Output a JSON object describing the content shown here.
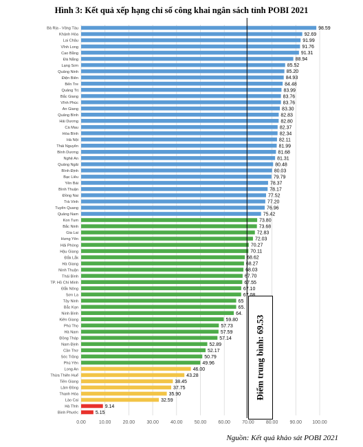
{
  "title": "Hình 3: Kết quả xếp hạng chỉ số công khai ngân sách tỉnh POBI 2021",
  "source": "Nguồn: Kết quả khảo sát POBI 2021",
  "median_label": "Điểm trung bình: 69.53",
  "colors": {
    "blue": "#5b9bd5",
    "green": "#4eac4a",
    "yellow": "#f2c447",
    "red": "#e8312c"
  },
  "chart_data": {
    "type": "bar",
    "orientation": "horizontal",
    "title": "Hình 3: Kết quả xếp hạng chỉ số công khai ngân sách tỉnh POBI 2021",
    "xlim": [
      0,
      100
    ],
    "xticks": [
      "0.00",
      "10.00",
      "20.00",
      "30.00",
      "40.00",
      "50.00",
      "60.00",
      "70.00",
      "80.00",
      "90.00",
      "100.00"
    ],
    "reference_line": {
      "value": 69.53,
      "label": "Điểm trung bình: 69.53"
    },
    "grid": true,
    "categories": [
      "Bà Rịa - Vũng Tàu",
      "Khánh Hòa",
      "Lai Châu",
      "Vĩnh Long",
      "Cao Bằng",
      "Đà Nẵng",
      "Lạng Sơn",
      "Quảng Ninh",
      "Điện Biên",
      "Bến Tre",
      "Quảng Trị",
      "Bắc Giang",
      "Vĩnh Phúc",
      "An Giang",
      "Quảng Bình",
      "Hải Dương",
      "Cà Mau",
      "Hòa Bình",
      "Hà Nội",
      "Thái Nguyên",
      "Bình Dương",
      "Nghệ An",
      "Quảng Ngãi",
      "Bình Định",
      "Bạc Liêu",
      "Yên Bái",
      "Bình Thuận",
      "Đồng Nai",
      "Trà Vinh",
      "Tuyên Quang",
      "Quảng Nam",
      "Kon Tum",
      "Bắc Ninh",
      "Gia Lai",
      "Hưng Yên",
      "Hải Phòng",
      "Hậu Giang",
      "Đắk Lắk",
      "Hà Giang",
      "Ninh Thuận",
      "Thái Bình",
      "TP. Hồ Chí Minh",
      "Đắk Nông",
      "Sơn La",
      "Tây Ninh",
      "Bắc Kạn",
      "Ninh Bình",
      "Kiên Giang",
      "Phú Thọ",
      "Hà Nam",
      "Đồng Tháp",
      "Nam Định",
      "Cần Thơ",
      "Sóc Trăng",
      "Phú Yên",
      "Long An",
      "Thừa Thiên Huế",
      "Tiền Giang",
      "Lâm Đồng",
      "Thanh Hóa",
      "Lào Cai",
      "Hà Tĩnh",
      "Bình Phước"
    ],
    "values": [
      98.59,
      92.69,
      91.99,
      91.76,
      91.31,
      88.94,
      85.52,
      85.2,
      84.93,
      84.48,
      83.99,
      83.76,
      83.76,
      83.3,
      82.83,
      82.8,
      82.37,
      82.34,
      82.11,
      81.99,
      81.68,
      81.31,
      80.48,
      80.03,
      79.79,
      78.37,
      78.17,
      77.52,
      77.2,
      76.96,
      75.42,
      73.8,
      73.68,
      72.83,
      72.03,
      70.27,
      70.11,
      68.62,
      68.27,
      68.03,
      67.7,
      67.55,
      67.1,
      67.08,
      65,
      65,
      64,
      59.8,
      57.73,
      57.59,
      57.14,
      52.89,
      52.17,
      50.79,
      49.96,
      46.0,
      43.28,
      38.45,
      37.75,
      35.9,
      32.59,
      9.14,
      5.15
    ],
    "labels": [
      "98.59",
      "92.69",
      "91.99",
      "91.76",
      "91.31",
      "88.94",
      "85.52",
      "85.20",
      "84.93",
      "84.48",
      "83.99",
      "83.76",
      "83.76",
      "83.30",
      "82.83",
      "82.80",
      "82.37",
      "82.34",
      "82.11",
      "81.99",
      "81.68",
      "81.31",
      "80.48",
      "80.03",
      "79.79",
      "78.37",
      "78.17",
      "77.52",
      "77.20",
      "76.96",
      "75.42",
      "73.80",
      "73.68",
      "72.83",
      "72.03",
      "70.27",
      "70.11",
      "68.62",
      "68.27",
      "68.03",
      "67.70",
      "67.55",
      "67.10",
      "67.08",
      "65",
      "65.",
      "64.",
      "59.80",
      "57.73",
      "57.59",
      "57.14",
      "52.89",
      "52.17",
      "50.79",
      "49.96",
      "46.00",
      "43.28",
      "38.45",
      "37.75",
      "35.90",
      "32.59",
      "9.14",
      "5.15"
    ],
    "groups": [
      "blue",
      "blue",
      "blue",
      "blue",
      "blue",
      "blue",
      "blue",
      "blue",
      "blue",
      "blue",
      "blue",
      "blue",
      "blue",
      "blue",
      "blue",
      "blue",
      "blue",
      "blue",
      "blue",
      "blue",
      "blue",
      "blue",
      "blue",
      "blue",
      "blue",
      "blue",
      "blue",
      "blue",
      "blue",
      "blue",
      "blue",
      "green",
      "green",
      "green",
      "green",
      "green",
      "green",
      "green",
      "green",
      "green",
      "green",
      "green",
      "green",
      "green",
      "green",
      "green",
      "green",
      "green",
      "green",
      "green",
      "green",
      "green",
      "green",
      "green",
      "green",
      "yellow",
      "yellow",
      "yellow",
      "yellow",
      "yellow",
      "yellow",
      "red",
      "red"
    ]
  }
}
